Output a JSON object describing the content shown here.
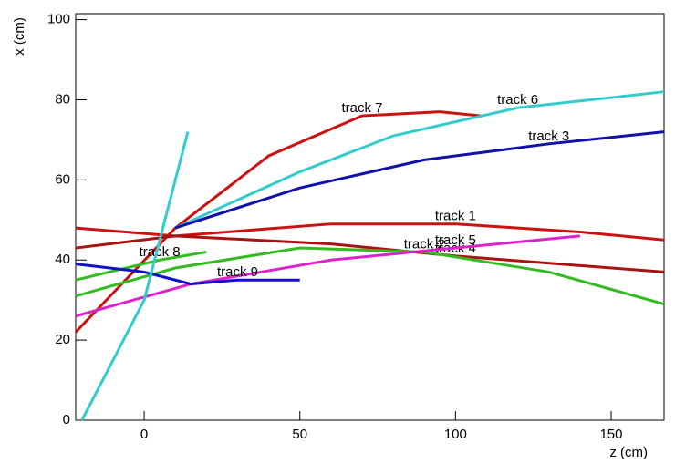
{
  "chart_data": {
    "type": "line",
    "x_label": "z (cm)",
    "y_label": "x (cm)",
    "xlim": [
      -22,
      167
    ],
    "ylim": [
      0,
      101.5
    ],
    "xticks": [
      0,
      50,
      100,
      150
    ],
    "yticks": [
      0,
      20,
      40,
      60,
      80,
      100
    ],
    "series": [
      {
        "name": "track 7",
        "color": "#cc1111",
        "x": [
          -22,
          10,
          40,
          70,
          95,
          108
        ],
        "values": [
          22,
          48,
          66,
          76,
          77,
          76
        ]
      },
      {
        "name": "track 6",
        "color": "#33cccc",
        "x": [
          10,
          50,
          80,
          120,
          167
        ],
        "values": [
          48,
          62,
          71,
          78,
          82
        ]
      },
      {
        "name": "track 3",
        "color": "#1111aa",
        "x": [
          10,
          50,
          90,
          130,
          167
        ],
        "values": [
          48,
          58,
          65,
          69,
          72
        ]
      },
      {
        "name": "track 1",
        "color": "#cc1111",
        "x": [
          -22,
          10,
          60,
          100,
          140,
          167
        ],
        "values": [
          48,
          46,
          49,
          49,
          47,
          45
        ]
      },
      {
        "name": "track 4",
        "color": "#aa1111",
        "x": [
          -22,
          10,
          60,
          100,
          167
        ],
        "values": [
          43,
          46,
          44,
          41,
          37
        ]
      },
      {
        "name": "track 2",
        "color": "#33bb22",
        "x": [
          -22,
          10,
          50,
          90,
          130,
          167
        ],
        "values": [
          31,
          38,
          43,
          42,
          37,
          29
        ]
      },
      {
        "name": "track 5",
        "color": "#dd22cc",
        "x": [
          -22,
          15,
          60,
          100,
          140
        ],
        "values": [
          26,
          34,
          40,
          43,
          46
        ]
      },
      {
        "name": "track 8",
        "color": "#33bb22",
        "x": [
          -22,
          5,
          20
        ],
        "values": [
          35,
          40,
          42
        ]
      },
      {
        "name": "track 9",
        "color": "#1111cc",
        "x": [
          -22,
          0,
          15,
          30,
          50
        ],
        "values": [
          39,
          37,
          34,
          35,
          35
        ]
      },
      {
        "color": "#33cccc",
        "x": [
          -20,
          0,
          14
        ],
        "values": [
          0,
          30,
          72
        ]
      }
    ]
  }
}
